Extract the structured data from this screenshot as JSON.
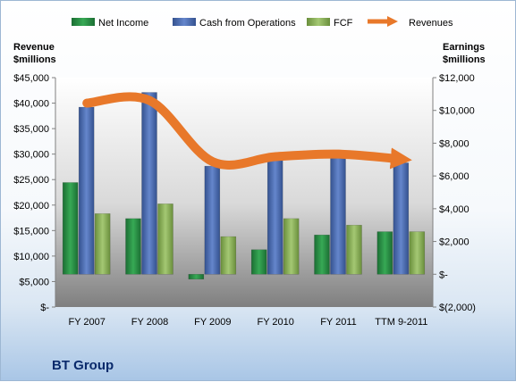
{
  "chart_data": {
    "type": "bar",
    "title": "BT Group",
    "categories": [
      "FY 2007",
      "FY 2008",
      "FY 2009",
      "FY 2010",
      "FY 2011",
      "TTM 9-2011"
    ],
    "left_axis": {
      "label_line1": "Revenue",
      "label_line2": "$millions",
      "ticks": [
        0,
        5000,
        10000,
        15000,
        20000,
        25000,
        30000,
        35000,
        40000,
        45000
      ],
      "tick_labels": [
        "$-",
        "$5,000",
        "$10,000",
        "$15,000",
        "$20,000",
        "$25,000",
        "$30,000",
        "$35,000",
        "$40,000",
        "$45,000"
      ],
      "ylim": [
        0,
        45000
      ]
    },
    "right_axis": {
      "label_line1": "Earnings",
      "label_line2": "$millions",
      "ticks": [
        -2000,
        0,
        2000,
        4000,
        6000,
        8000,
        10000,
        12000
      ],
      "tick_labels": [
        "$(2,000)",
        "$-",
        "$2,000",
        "$4,000",
        "$6,000",
        "$8,000",
        "$10,000",
        "$12,000"
      ],
      "ylim": [
        -2000,
        12000
      ]
    },
    "series": [
      {
        "name": "Net Income",
        "axis": "right",
        "kind": "bar",
        "color": "#2f9a4c",
        "values": [
          5600,
          3400,
          -300,
          1500,
          2400,
          2600
        ]
      },
      {
        "name": "Cash from Operations",
        "axis": "right",
        "kind": "bar",
        "color": "#4f6fb8",
        "values": [
          10200,
          11100,
          6600,
          7300,
          7300,
          6800
        ]
      },
      {
        "name": "FCF",
        "axis": "right",
        "kind": "bar",
        "color": "#8ab35a",
        "values": [
          3700,
          4300,
          2300,
          3400,
          3000,
          2600
        ]
      },
      {
        "name": "Revenues",
        "axis": "left",
        "kind": "line",
        "color": "#e8782a",
        "values": [
          40000,
          40500,
          28500,
          29500,
          30000,
          29000
        ]
      }
    ],
    "legend_position": "top",
    "grid": false
  }
}
